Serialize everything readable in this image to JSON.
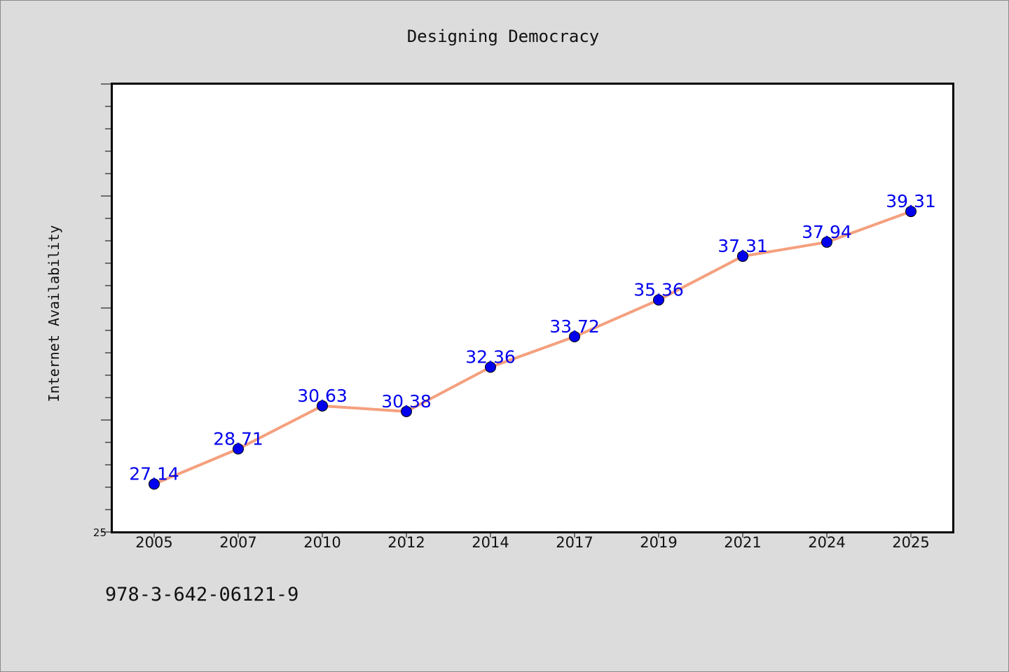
{
  "chart_data": {
    "type": "line",
    "title": "Designing Democracy",
    "xlabel": "",
    "ylabel": "Internet Availability",
    "categories": [
      "2005",
      "2007",
      "2010",
      "2012",
      "2014",
      "2017",
      "2019",
      "2021",
      "2024",
      "2025"
    ],
    "series": [
      {
        "values": [
          27.14,
          28.71,
          30.63,
          30.38,
          32.36,
          33.72,
          35.36,
          37.31,
          37.94,
          39.31
        ],
        "line_color": "#f4a07e",
        "marker_color": "#0000ee",
        "label_color": "#0000ee"
      }
    ],
    "ylim": [
      25,
      45
    ],
    "y_tick_labels": [
      "25"
    ],
    "grid": false,
    "legend": "none"
  },
  "caption": "978-3-642-06121-9",
  "colors": {
    "background": "#dcdcdc",
    "plot_background": "#ffffff",
    "axis": "#000000"
  }
}
